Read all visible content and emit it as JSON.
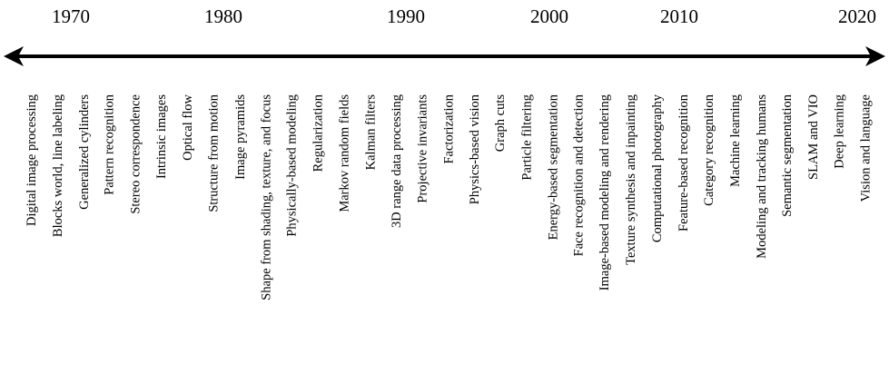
{
  "timeline": {
    "years": [
      "1970",
      "1980",
      "1990",
      "2000",
      "2010",
      "2020"
    ],
    "topics": [
      "Digital image processing",
      "Blocks world, line labeling",
      "Generalized cylinders",
      "Pattern recognition",
      "Stereo correspondence",
      "Intrinsic images",
      "Optical flow",
      "Structure from motion",
      "Image pyramids",
      "Shape from shading, texture, and focus",
      "Physically-based  modeling",
      "Regularization",
      "Markov random fields",
      "Kalman filters",
      "3D range data processing",
      "Projective invariants",
      "Factorization",
      "Physics-based vision",
      "Graph cuts",
      "Particle filtering",
      "Energy-based segmentation",
      "Face recognition and detection",
      "Image-based modeling and rendering",
      "Texture synthesis and inpainting",
      "Computational photography",
      "Feature-based  recognition",
      "Category recognition",
      "Machine  learning",
      "Modeling and tracking humans",
      "Semantic  segmentation",
      "SLAM and VIO",
      "Deep learning",
      "Vision and language"
    ]
  }
}
